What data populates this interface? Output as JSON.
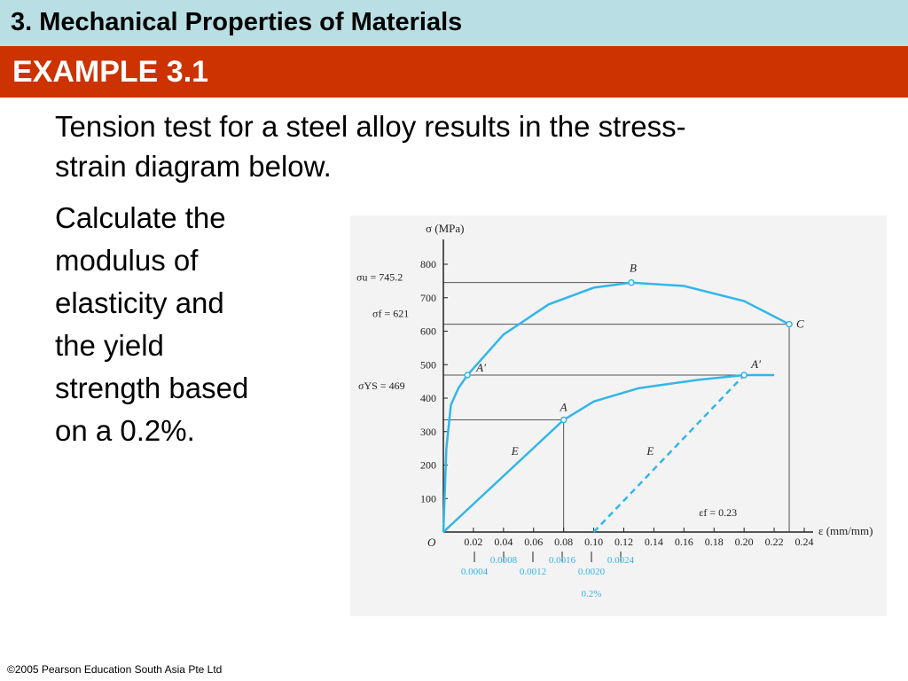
{
  "header": {
    "section_title": "3. Mechanical Properties of Materials",
    "example_title": "EXAMPLE 3.1"
  },
  "content": {
    "intro_line1": "Tension test for a steel alloy results in the stress-",
    "intro_line2": "strain diagram below.",
    "task_lines": [
      "Calculate the",
      "modulus of",
      "elasticity and",
      "the yield",
      "strength based",
      "on a 0.2%."
    ]
  },
  "footer": {
    "copyright": "©2005 Pearson Education South Asia Pte Ltd"
  },
  "chart_data": {
    "type": "line",
    "ylabel": "σ (MPa)",
    "xlabel": "ε (mm/mm)",
    "origin_label": "O",
    "ylim": [
      0,
      800
    ],
    "xlim": [
      0,
      0.24
    ],
    "y_ticks": [
      100,
      200,
      300,
      400,
      500,
      600,
      700,
      800
    ],
    "x_ticks": [
      "0.02",
      "0.04",
      "0.06",
      "0.08",
      "0.10",
      "0.12",
      "0.14",
      "0.16",
      "0.18",
      "0.20",
      "0.22",
      "0.24"
    ],
    "lower_ticks": [
      "0.0004",
      "0.0008",
      "0.0012",
      "0.0016",
      "0.0020",
      "0.0024"
    ],
    "lower_note": "0.2%",
    "annotations": {
      "sigma_u": "σu = 745.2",
      "sigma_f": "σf = 621",
      "sigma_ys": "σYS = 469",
      "eps_f": "εf = 0.23"
    },
    "points": {
      "A": {
        "label": "A",
        "x": 0.08,
        "y": 335
      },
      "B": {
        "label": "B",
        "x": 0.125,
        "y": 745.2
      },
      "C": {
        "label": "C",
        "x": 0.23,
        "y": 621
      },
      "A_prime_left": {
        "label": "A′",
        "x": 0.016,
        "y": 469
      },
      "A_prime_right": {
        "label": "A′",
        "x": 0.2,
        "y": 469
      },
      "E_left": {
        "label": "E",
        "x": 0.05,
        "y": 220
      },
      "E_right": {
        "label": "E",
        "x": 0.14,
        "y": 220
      }
    },
    "series": [
      {
        "values": [
          [
            0,
            0
          ],
          [
            0.002,
            250
          ],
          [
            0.005,
            380
          ],
          [
            0.01,
            430
          ],
          [
            0.016,
            469
          ],
          [
            0.04,
            590
          ],
          [
            0.07,
            680
          ],
          [
            0.1,
            730
          ],
          [
            0.125,
            745.2
          ],
          [
            0.16,
            735
          ],
          [
            0.2,
            690
          ],
          [
            0.23,
            621
          ]
        ]
      },
      {
        "values": [
          [
            0,
            0
          ],
          [
            0.08,
            335
          ],
          [
            0.1,
            390
          ],
          [
            0.13,
            430
          ],
          [
            0.17,
            455
          ],
          [
            0.2,
            469
          ],
          [
            0.22,
            469
          ]
        ]
      },
      {
        "values": [
          [
            0.1,
            0
          ],
          [
            0.2,
            469
          ]
        ],
        "dashed": true
      }
    ],
    "colors": {
      "curve": "#33b6e8",
      "axis": "#222222",
      "guide": "#555555",
      "lower_labels": "#33b6e8"
    }
  }
}
